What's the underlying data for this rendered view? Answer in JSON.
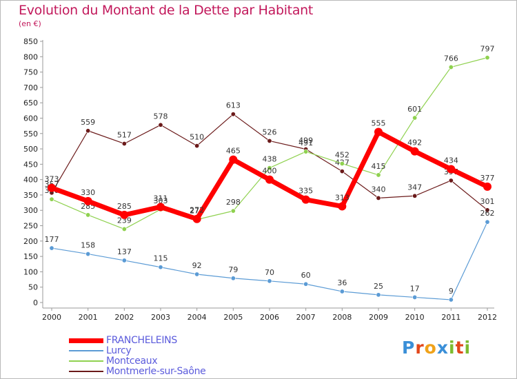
{
  "title": "Evolution du Montant de la Dette par Habitant",
  "subtitle": "(en €)",
  "brand": {
    "letters": [
      "P",
      "r",
      "o",
      "x",
      "i",
      "t",
      "i"
    ],
    "colors": [
      "#3a8fd8",
      "#e2471b",
      "#f0a21a",
      "#3a8fd8",
      "#7dbb2e",
      "#e2471b",
      "#7dbb2e"
    ]
  },
  "chart_data": {
    "type": "line",
    "title": "Evolution du Montant de la Dette par Habitant",
    "subtitle": "(en €)",
    "x": [
      "2000",
      "2001",
      "2002",
      "2003",
      "2004",
      "2005",
      "2006",
      "2007",
      "2008",
      "2009",
      "2010",
      "2011",
      "2012"
    ],
    "ylim": [
      0,
      850
    ],
    "yticks": [
      0,
      50,
      100,
      150,
      200,
      250,
      300,
      350,
      400,
      450,
      500,
      550,
      600,
      650,
      700,
      750,
      800,
      850
    ],
    "grid": false,
    "legend_position": "bottom-left",
    "series": [
      {
        "name": "Montmerle-sur-Saône",
        "color": "#6b1a1a",
        "width": 1.2,
        "values": [
          357,
          559,
          517,
          578,
          510,
          613,
          526,
          499,
          427,
          340,
          347,
          397,
          301
        ],
        "labels": [
          "357",
          "559",
          "517",
          "578",
          "510",
          "613",
          "526",
          "499",
          "427",
          "340",
          "347",
          "397",
          "301"
        ]
      },
      {
        "name": "Montceaux",
        "color": "#8fd14f",
        "width": 1.2,
        "values": [
          336,
          285,
          239,
          303,
          270,
          298,
          438,
          491,
          452,
          415,
          601,
          766,
          797
        ],
        "labels": [
          "336",
          "285",
          "239",
          "303",
          "270",
          "298",
          "438",
          "491",
          "452",
          "415",
          "601",
          "766",
          "797"
        ]
      },
      {
        "name": "Lurcy",
        "color": "#5b9bd5",
        "width": 1.2,
        "values": [
          177,
          158,
          137,
          115,
          92,
          79,
          70,
          60,
          36,
          25,
          17,
          9,
          262
        ],
        "labels": [
          "177",
          "158",
          "137",
          "115",
          "92",
          "79",
          "70",
          "60",
          "36",
          "25",
          "17",
          "9",
          "262"
        ]
      },
      {
        "name": "FRANCHELEINS",
        "color": "#ff0000",
        "width": 7,
        "values": [
          373,
          330,
          285,
          311,
          272,
          465,
          400,
          335,
          313,
          555,
          492,
          434,
          377
        ],
        "labels": [
          "373",
          "330",
          "285",
          "311",
          "272",
          "465",
          "400",
          "335",
          "313",
          "555",
          "492",
          "434",
          "377"
        ]
      }
    ]
  }
}
